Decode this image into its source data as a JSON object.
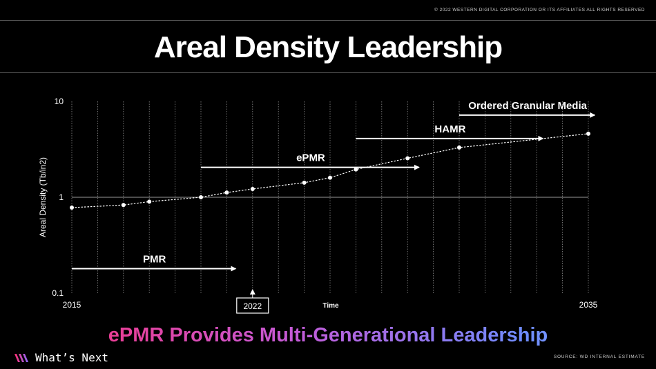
{
  "copyright": "© 2022 WESTERN DIGITAL CORPORATION OR ITS AFFILIATES  ALL RIGHTS RESERVED",
  "title": "Areal Density Leadership",
  "subtitle": "ePMR Provides Multi-Generational Leadership",
  "footer": {
    "brand": "What’s Next",
    "source": "SOURCE: WD INTERNAL ESTIMATE"
  },
  "colors": {
    "background": "#000000",
    "gradient_start": "#ff2d6f",
    "gradient_mid": "#c45bd8",
    "gradient_end": "#6e8cff"
  },
  "chart_data": {
    "type": "line",
    "ylabel": "Areal Density (Tb/in2)",
    "xlabel": "Time",
    "yscale": "log",
    "ylim": [
      0.1,
      10
    ],
    "xlim": [
      2015,
      2035
    ],
    "y_ticks": [
      "10",
      "1",
      "0.1"
    ],
    "x_ticks": [
      "2015",
      "2035"
    ],
    "highlight_year": "2022",
    "series": [
      {
        "x": [
          2015,
          2017,
          2018,
          2020,
          2021,
          2022,
          2024,
          2025,
          2026,
          2028,
          2030,
          2035
        ],
        "y": [
          0.78,
          0.83,
          0.9,
          1.0,
          1.12,
          1.22,
          1.42,
          1.6,
          1.95,
          2.55,
          3.3,
          4.6
        ]
      }
    ],
    "technologies": [
      {
        "label": "PMR",
        "start": 2015,
        "end": 2021.4,
        "level": 0.18
      },
      {
        "label": "ePMR",
        "start": 2020,
        "end": 2028.5,
        "level": 2.05
      },
      {
        "label": "HAMR",
        "start": 2026,
        "end": 2033.3,
        "level": 4.1
      },
      {
        "label": "Ordered Granular Media",
        "start": 2030,
        "end": 2035.3,
        "level": 7.2
      }
    ],
    "grid": "vertical-dotted",
    "reference_line": 1
  }
}
